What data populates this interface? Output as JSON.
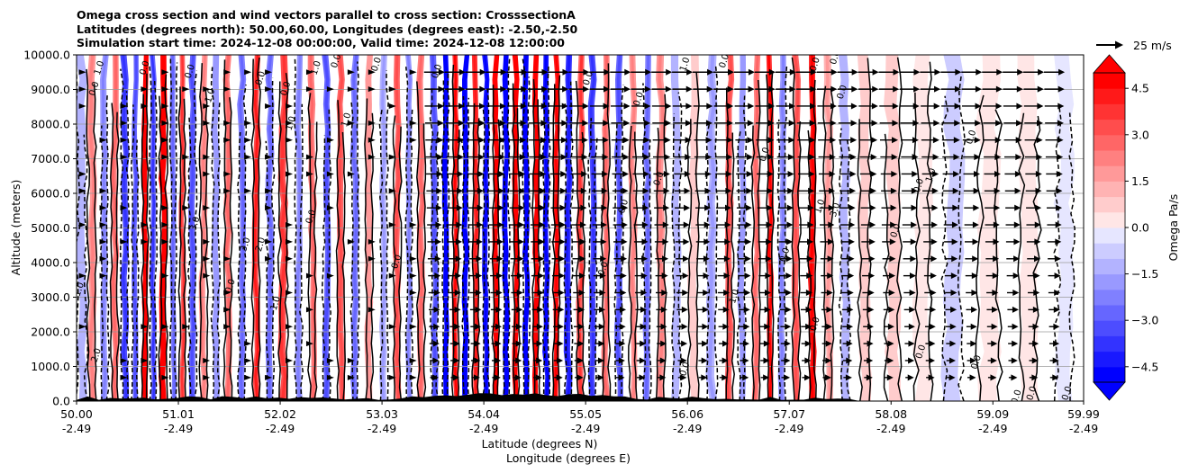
{
  "chart_data": {
    "type": "heatmap",
    "title_lines": [
      "Omega cross section and wind vectors parallel to cross section: CrosssectionA",
      "Latitudes (degrees north): 50.00,60.00, Longitudes (degrees east): -2.50,-2.50",
      "Simulation start time: 2024-12-08 00:00:00, Valid time: 2024-12-08 12:00:00"
    ],
    "ylabel": "Altitude (meters)",
    "xlabel_lat": "Latitude (degrees N)",
    "xlabel_lon": "Longitude (degrees E)",
    "ylim": [
      0,
      10000
    ],
    "y_ticks": [
      {
        "value": 0,
        "label": "0.0"
      },
      {
        "value": 1000,
        "label": "1000.0"
      },
      {
        "value": 2000,
        "label": "2000.0"
      },
      {
        "value": 3000,
        "label": "3000.0"
      },
      {
        "value": 4000,
        "label": "4000.0"
      },
      {
        "value": 5000,
        "label": "5000.0"
      },
      {
        "value": 6000,
        "label": "6000.0"
      },
      {
        "value": 7000,
        "label": "7000.0"
      },
      {
        "value": 8000,
        "label": "8000.0"
      },
      {
        "value": 9000,
        "label": "9000.0"
      },
      {
        "value": 10000,
        "label": "10000.0"
      }
    ],
    "xlim": [
      50.0,
      59.99
    ],
    "x_ticks": [
      {
        "value": 50.0,
        "lat": "50.00",
        "lon": "-2.49"
      },
      {
        "value": 51.01,
        "lat": "51.01",
        "lon": "-2.49"
      },
      {
        "value": 52.02,
        "lat": "52.02",
        "lon": "-2.49"
      },
      {
        "value": 53.03,
        "lat": "53.03",
        "lon": "-2.49"
      },
      {
        "value": 54.04,
        "lat": "54.04",
        "lon": "-2.49"
      },
      {
        "value": 55.05,
        "lat": "55.05",
        "lon": "-2.49"
      },
      {
        "value": 56.06,
        "lat": "56.06",
        "lon": "-2.49"
      },
      {
        "value": 57.07,
        "lat": "57.07",
        "lon": "-2.49"
      },
      {
        "value": 58.08,
        "lat": "58.08",
        "lon": "-2.49"
      },
      {
        "value": 59.09,
        "lat": "59.09",
        "lon": "-2.49"
      },
      {
        "value": 59.99,
        "lat": "59.99",
        "lon": "-2.49"
      }
    ],
    "colorbar": {
      "label": "Omega Pa/s",
      "range": [
        -5.0,
        5.0
      ],
      "ticks": [
        {
          "value": 4.5,
          "label": "4.5"
        },
        {
          "value": 3.0,
          "label": "3.0"
        },
        {
          "value": 1.5,
          "label": "1.5"
        },
        {
          "value": 0.0,
          "label": "0.0"
        },
        {
          "value": -1.5,
          "label": "−1.5"
        },
        {
          "value": -3.0,
          "label": "−3.0"
        },
        {
          "value": -4.5,
          "label": "−4.5"
        }
      ],
      "extend": "both",
      "positive_color": "#ff0000",
      "negative_color": "#0000ff"
    },
    "vector_key": {
      "label": "25 m/s"
    },
    "omega_columns": [
      {
        "lat": 50.05,
        "value": -1.2,
        "width": 0.08
      },
      {
        "lat": 50.15,
        "value": 1.8,
        "width": 0.07
      },
      {
        "lat": 50.28,
        "value": -2.0,
        "width": 0.06
      },
      {
        "lat": 50.38,
        "value": 2.5,
        "width": 0.06
      },
      {
        "lat": 50.48,
        "value": -3.2,
        "width": 0.06
      },
      {
        "lat": 50.58,
        "value": -2.6,
        "width": 0.05
      },
      {
        "lat": 50.68,
        "value": 4.8,
        "width": 0.05
      },
      {
        "lat": 50.76,
        "value": -3.0,
        "width": 0.05
      },
      {
        "lat": 50.86,
        "value": 4.6,
        "width": 0.06
      },
      {
        "lat": 50.96,
        "value": -2.2,
        "width": 0.05
      },
      {
        "lat": 51.05,
        "value": 3.0,
        "width": 0.05
      },
      {
        "lat": 51.15,
        "value": -2.8,
        "width": 0.06
      },
      {
        "lat": 51.26,
        "value": 2.0,
        "width": 0.06
      },
      {
        "lat": 51.38,
        "value": -1.6,
        "width": 0.06
      },
      {
        "lat": 51.5,
        "value": 2.2,
        "width": 0.06
      },
      {
        "lat": 51.64,
        "value": -2.4,
        "width": 0.06
      },
      {
        "lat": 51.78,
        "value": 3.4,
        "width": 0.06
      },
      {
        "lat": 51.92,
        "value": -2.2,
        "width": 0.06
      },
      {
        "lat": 52.05,
        "value": 3.2,
        "width": 0.07
      },
      {
        "lat": 52.2,
        "value": -1.8,
        "width": 0.06
      },
      {
        "lat": 52.34,
        "value": 2.4,
        "width": 0.06
      },
      {
        "lat": 52.48,
        "value": -2.6,
        "width": 0.06
      },
      {
        "lat": 52.62,
        "value": 2.8,
        "width": 0.06
      },
      {
        "lat": 52.76,
        "value": -2.2,
        "width": 0.06
      },
      {
        "lat": 52.9,
        "value": 1.6,
        "width": 0.06
      },
      {
        "lat": 53.05,
        "value": -1.4,
        "width": 0.06
      },
      {
        "lat": 53.18,
        "value": 2.6,
        "width": 0.06
      },
      {
        "lat": 53.3,
        "value": -1.8,
        "width": 0.05
      },
      {
        "lat": 53.42,
        "value": 2.2,
        "width": 0.06
      },
      {
        "lat": 53.55,
        "value": -2.8,
        "width": 0.06
      },
      {
        "lat": 53.66,
        "value": -4.8,
        "width": 0.05
      },
      {
        "lat": 53.76,
        "value": 4.0,
        "width": 0.05
      },
      {
        "lat": 53.86,
        "value": -4.9,
        "width": 0.05
      },
      {
        "lat": 53.96,
        "value": 3.6,
        "width": 0.05
      },
      {
        "lat": 54.06,
        "value": -4.2,
        "width": 0.05
      },
      {
        "lat": 54.16,
        "value": 4.8,
        "width": 0.05
      },
      {
        "lat": 54.26,
        "value": -5.0,
        "width": 0.05
      },
      {
        "lat": 54.36,
        "value": 5.0,
        "width": 0.05
      },
      {
        "lat": 54.46,
        "value": -4.6,
        "width": 0.05
      },
      {
        "lat": 54.56,
        "value": 5.0,
        "width": 0.05
      },
      {
        "lat": 54.66,
        "value": -4.4,
        "width": 0.05
      },
      {
        "lat": 54.76,
        "value": 4.4,
        "width": 0.05
      },
      {
        "lat": 54.88,
        "value": -3.6,
        "width": 0.06
      },
      {
        "lat": 55.0,
        "value": 3.0,
        "width": 0.06
      },
      {
        "lat": 55.12,
        "value": -3.2,
        "width": 0.06
      },
      {
        "lat": 55.25,
        "value": 2.4,
        "width": 0.06
      },
      {
        "lat": 55.38,
        "value": -2.6,
        "width": 0.06
      },
      {
        "lat": 55.52,
        "value": 2.0,
        "width": 0.06
      },
      {
        "lat": 55.66,
        "value": -2.4,
        "width": 0.06
      },
      {
        "lat": 55.8,
        "value": 1.8,
        "width": 0.07
      },
      {
        "lat": 55.95,
        "value": -1.2,
        "width": 0.07
      },
      {
        "lat": 56.12,
        "value": 0.8,
        "width": 0.08
      },
      {
        "lat": 56.3,
        "value": -1.4,
        "width": 0.08
      },
      {
        "lat": 56.48,
        "value": 2.6,
        "width": 0.06
      },
      {
        "lat": 56.6,
        "value": -1.6,
        "width": 0.06
      },
      {
        "lat": 56.74,
        "value": 2.2,
        "width": 0.06
      },
      {
        "lat": 56.88,
        "value": 3.8,
        "width": 0.05
      },
      {
        "lat": 57.0,
        "value": -1.8,
        "width": 0.06
      },
      {
        "lat": 57.14,
        "value": 2.8,
        "width": 0.06
      },
      {
        "lat": 57.3,
        "value": 4.2,
        "width": 0.06
      },
      {
        "lat": 57.46,
        "value": 1.4,
        "width": 0.07
      },
      {
        "lat": 57.62,
        "value": -1.2,
        "width": 0.08
      },
      {
        "lat": 57.82,
        "value": 0.6,
        "width": 0.1
      },
      {
        "lat": 58.1,
        "value": 0.9,
        "width": 0.12
      },
      {
        "lat": 58.4,
        "value": 0.5,
        "width": 0.14
      },
      {
        "lat": 58.7,
        "value": -0.6,
        "width": 0.16
      },
      {
        "lat": 59.05,
        "value": 0.4,
        "width": 0.18
      },
      {
        "lat": 59.45,
        "value": 0.5,
        "width": 0.16
      },
      {
        "lat": 59.8,
        "value": -0.3,
        "width": 0.14
      }
    ],
    "contour_labels": [
      {
        "lat": 50.25,
        "alt": 9600,
        "text": "1.0"
      },
      {
        "lat": 50.2,
        "alt": 9000,
        "text": "0.0"
      },
      {
        "lat": 50.05,
        "alt": 3200,
        "text": "1.0"
      },
      {
        "lat": 50.22,
        "alt": 1300,
        "text": "2.0"
      },
      {
        "lat": 50.7,
        "alt": 9600,
        "text": "0.0"
      },
      {
        "lat": 51.15,
        "alt": 9500,
        "text": "0.0"
      },
      {
        "lat": 51.2,
        "alt": 5100,
        "text": "3.0"
      },
      {
        "lat": 51.35,
        "alt": 8800,
        "text": "1.0"
      },
      {
        "lat": 51.85,
        "alt": 9300,
        "text": "0.0"
      },
      {
        "lat": 52.1,
        "alt": 9000,
        "text": "0.0"
      },
      {
        "lat": 51.7,
        "alt": 4500,
        "text": "3.0"
      },
      {
        "lat": 51.85,
        "alt": 4500,
        "text": "2.0"
      },
      {
        "lat": 51.55,
        "alt": 3300,
        "text": "0.0"
      },
      {
        "lat": 52.15,
        "alt": 8000,
        "text": "1.0"
      },
      {
        "lat": 52.4,
        "alt": 9600,
        "text": "1.0"
      },
      {
        "lat": 52.6,
        "alt": 9800,
        "text": "0.0"
      },
      {
        "lat": 52.7,
        "alt": 8100,
        "text": "1.0"
      },
      {
        "lat": 52.35,
        "alt": 5300,
        "text": "0.0"
      },
      {
        "lat": 52.0,
        "alt": 2800,
        "text": "1.0"
      },
      {
        "lat": 53.0,
        "alt": 9700,
        "text": "0.0"
      },
      {
        "lat": 53.6,
        "alt": 9500,
        "text": "0.0"
      },
      {
        "lat": 53.2,
        "alt": 4000,
        "text": "0.0"
      },
      {
        "lat": 55.1,
        "alt": 9300,
        "text": "0.0"
      },
      {
        "lat": 55.6,
        "alt": 8700,
        "text": "0.0"
      },
      {
        "lat": 55.45,
        "alt": 5600,
        "text": "0.0"
      },
      {
        "lat": 55.8,
        "alt": 6400,
        "text": "0.0"
      },
      {
        "lat": 55.25,
        "alt": 3800,
        "text": "0.0"
      },
      {
        "lat": 56.06,
        "alt": 9700,
        "text": "1.0"
      },
      {
        "lat": 56.45,
        "alt": 9800,
        "text": "0.0"
      },
      {
        "lat": 56.55,
        "alt": 3000,
        "text": "1.0"
      },
      {
        "lat": 56.85,
        "alt": 7100,
        "text": "0.0"
      },
      {
        "lat": 57.05,
        "alt": 4200,
        "text": "0.0"
      },
      {
        "lat": 56.06,
        "alt": 900,
        "text": "0.0"
      },
      {
        "lat": 57.35,
        "alt": 9700,
        "text": "0.0"
      },
      {
        "lat": 57.55,
        "alt": 9900,
        "text": "0.0"
      },
      {
        "lat": 57.62,
        "alt": 8900,
        "text": "0.0"
      },
      {
        "lat": 57.4,
        "alt": 5600,
        "text": "1.0"
      },
      {
        "lat": 57.55,
        "alt": 5500,
        "text": "3.0"
      },
      {
        "lat": 57.35,
        "alt": 2200,
        "text": "0.0"
      },
      {
        "lat": 58.15,
        "alt": 4900,
        "text": "0.0"
      },
      {
        "lat": 58.5,
        "alt": 6500,
        "text": "1.0"
      },
      {
        "lat": 58.38,
        "alt": 6200,
        "text": "0.0"
      },
      {
        "lat": 58.4,
        "alt": 1400,
        "text": "0.0"
      },
      {
        "lat": 58.9,
        "alt": 7600,
        "text": "0.0"
      },
      {
        "lat": 58.95,
        "alt": 1100,
        "text": "0.0"
      },
      {
        "lat": 59.35,
        "alt": 100,
        "text": "0.0"
      },
      {
        "lat": 59.5,
        "alt": 200,
        "text": "0.0"
      },
      {
        "lat": 59.85,
        "alt": 200,
        "text": "0.0"
      }
    ]
  }
}
